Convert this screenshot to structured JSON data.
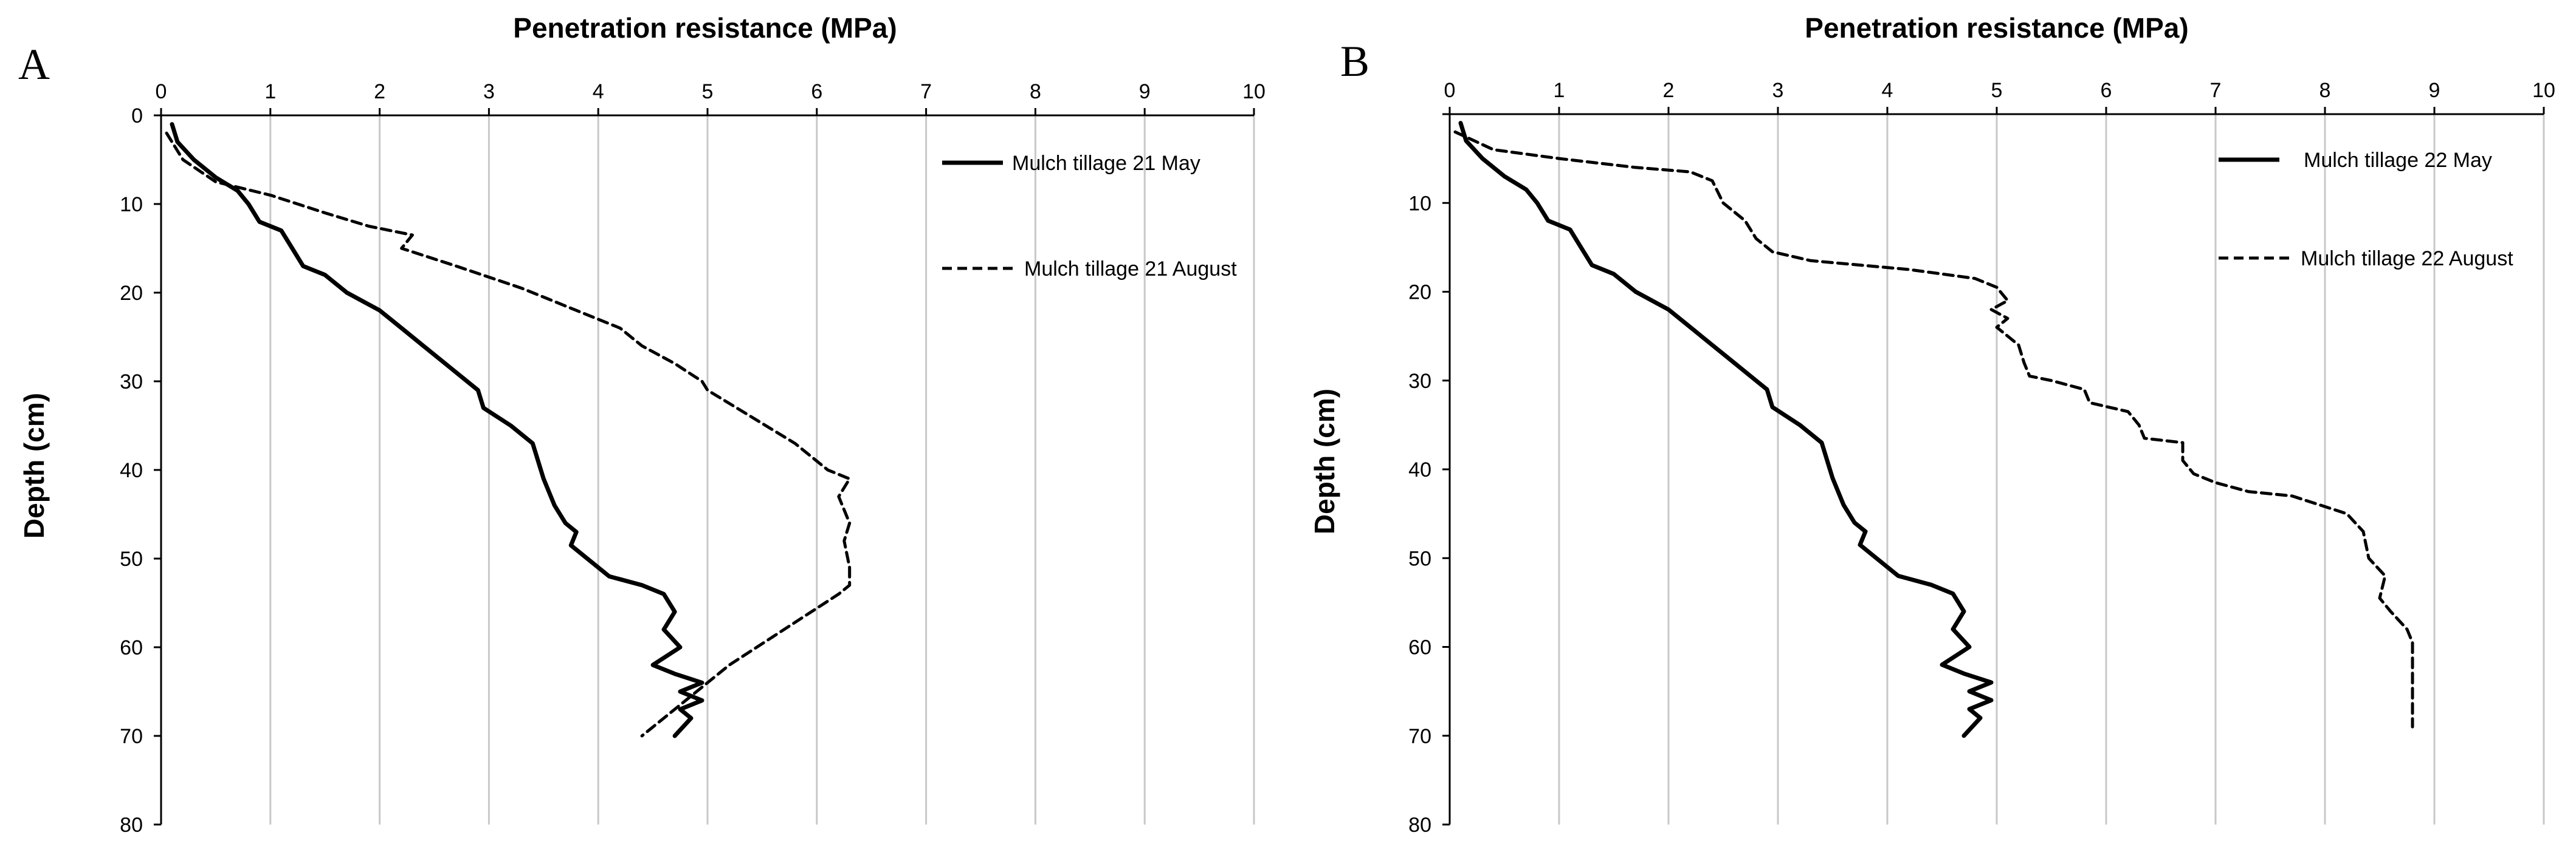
{
  "chart_data": [
    {
      "type": "line",
      "panel_label": "A",
      "title": "Penetration resistance (MPa)",
      "xlabel": "Penetration resistance (MPa)",
      "ylabel": "Depth (cm)",
      "xlim": [
        0,
        10
      ],
      "ylim": [
        0,
        80
      ],
      "x_ticks": [
        0,
        1,
        2,
        3,
        4,
        5,
        6,
        7,
        8,
        9,
        10
      ],
      "y_ticks": [
        0,
        10,
        20,
        30,
        40,
        50,
        60,
        70,
        80
      ],
      "y_inverted": true,
      "x_axis_position": "top",
      "grid": "vertical",
      "legend_position": "top-right",
      "series": [
        {
          "name": "Mulch tillage 21 May",
          "style": "solid",
          "points": [
            [
              0.1,
              1
            ],
            [
              0.15,
              3
            ],
            [
              0.3,
              5
            ],
            [
              0.5,
              7
            ],
            [
              0.7,
              8.5
            ],
            [
              0.8,
              10
            ],
            [
              0.9,
              12
            ],
            [
              1.1,
              13
            ],
            [
              1.2,
              15
            ],
            [
              1.3,
              17
            ],
            [
              1.5,
              18
            ],
            [
              1.7,
              20
            ],
            [
              2.0,
              22
            ],
            [
              2.2,
              24
            ],
            [
              2.4,
              26
            ],
            [
              2.6,
              28
            ],
            [
              2.8,
              30
            ],
            [
              2.9,
              31
            ],
            [
              2.95,
              33
            ],
            [
              3.2,
              35
            ],
            [
              3.4,
              37
            ],
            [
              3.45,
              39
            ],
            [
              3.5,
              41
            ],
            [
              3.6,
              44
            ],
            [
              3.7,
              46
            ],
            [
              3.8,
              47
            ],
            [
              3.75,
              48.5
            ],
            [
              3.9,
              50
            ],
            [
              4.1,
              52
            ],
            [
              4.4,
              53
            ],
            [
              4.6,
              54
            ],
            [
              4.7,
              56
            ],
            [
              4.6,
              58
            ],
            [
              4.75,
              60
            ],
            [
              4.5,
              62
            ],
            [
              4.7,
              63
            ],
            [
              4.95,
              64
            ],
            [
              4.75,
              65
            ],
            [
              4.95,
              66
            ],
            [
              4.75,
              67
            ],
            [
              4.85,
              68
            ],
            [
              4.7,
              70
            ]
          ]
        },
        {
          "name": "Mulch tillage 21 August",
          "style": "dashed",
          "points": [
            [
              0.05,
              2
            ],
            [
              0.2,
              5
            ],
            [
              0.5,
              7.5
            ],
            [
              1.0,
              9
            ],
            [
              1.5,
              11
            ],
            [
              1.9,
              12.5
            ],
            [
              2.3,
              13.5
            ],
            [
              2.2,
              15
            ],
            [
              2.7,
              17
            ],
            [
              3.3,
              19.5
            ],
            [
              3.8,
              22
            ],
            [
              4.2,
              24
            ],
            [
              4.4,
              26
            ],
            [
              4.7,
              28
            ],
            [
              4.95,
              30
            ],
            [
              5.0,
              31
            ],
            [
              5.4,
              34
            ],
            [
              5.8,
              37
            ],
            [
              6.1,
              40
            ],
            [
              6.3,
              41
            ],
            [
              6.2,
              43
            ],
            [
              6.3,
              46
            ],
            [
              6.25,
              48
            ],
            [
              6.3,
              51
            ],
            [
              6.3,
              53
            ],
            [
              6.2,
              54
            ],
            [
              5.2,
              62
            ],
            [
              4.4,
              70
            ]
          ]
        }
      ]
    },
    {
      "type": "line",
      "panel_label": "B",
      "title": "Penetration resistance (MPa)",
      "xlabel": "Penetration resistance (MPa)",
      "ylabel": "Depth (cm)",
      "xlim": [
        0,
        10
      ],
      "ylim": [
        0,
        80
      ],
      "x_ticks": [
        0,
        1,
        2,
        3,
        4,
        5,
        6,
        7,
        8,
        9,
        10
      ],
      "y_ticks": [
        0,
        10,
        20,
        30,
        40,
        50,
        60,
        70,
        80
      ],
      "y_tick_labels": [
        "",
        "10",
        "20",
        "30",
        "40",
        "50",
        "60",
        "70",
        "80"
      ],
      "y_inverted": true,
      "x_axis_position": "top",
      "grid": "vertical",
      "legend_position": "top-right",
      "series": [
        {
          "name": "Mulch tillage 22 May",
          "style": "solid",
          "points": [
            [
              0.1,
              1
            ],
            [
              0.15,
              3
            ],
            [
              0.3,
              5
            ],
            [
              0.5,
              7
            ],
            [
              0.7,
              8.5
            ],
            [
              0.8,
              10
            ],
            [
              0.9,
              12
            ],
            [
              1.1,
              13
            ],
            [
              1.2,
              15
            ],
            [
              1.3,
              17
            ],
            [
              1.5,
              18
            ],
            [
              1.7,
              20
            ],
            [
              2.0,
              22
            ],
            [
              2.2,
              24
            ],
            [
              2.4,
              26
            ],
            [
              2.6,
              28
            ],
            [
              2.8,
              30
            ],
            [
              2.9,
              31
            ],
            [
              2.95,
              33
            ],
            [
              3.2,
              35
            ],
            [
              3.4,
              37
            ],
            [
              3.45,
              39
            ],
            [
              3.5,
              41
            ],
            [
              3.6,
              44
            ],
            [
              3.7,
              46
            ],
            [
              3.8,
              47
            ],
            [
              3.75,
              48.5
            ],
            [
              3.9,
              50
            ],
            [
              4.1,
              52
            ],
            [
              4.4,
              53
            ],
            [
              4.6,
              54
            ],
            [
              4.7,
              56
            ],
            [
              4.6,
              58
            ],
            [
              4.75,
              60
            ],
            [
              4.5,
              62
            ],
            [
              4.7,
              63
            ],
            [
              4.95,
              64
            ],
            [
              4.75,
              65
            ],
            [
              4.95,
              66
            ],
            [
              4.75,
              67
            ],
            [
              4.85,
              68
            ],
            [
              4.7,
              70
            ]
          ]
        },
        {
          "name": "Mulch tillage 22 August",
          "style": "dashed",
          "points": [
            [
              0.05,
              2
            ],
            [
              0.4,
              4
            ],
            [
              1.0,
              5
            ],
            [
              1.7,
              6
            ],
            [
              2.2,
              6.5
            ],
            [
              2.4,
              7.5
            ],
            [
              2.5,
              10
            ],
            [
              2.7,
              12
            ],
            [
              2.8,
              14
            ],
            [
              2.95,
              15.5
            ],
            [
              3.3,
              16.5
            ],
            [
              4.2,
              17.5
            ],
            [
              4.8,
              18.5
            ],
            [
              5.0,
              19.5
            ],
            [
              5.1,
              21
            ],
            [
              4.95,
              22
            ],
            [
              5.1,
              23
            ],
            [
              5.0,
              24
            ],
            [
              5.2,
              26
            ],
            [
              5.25,
              28
            ],
            [
              5.3,
              29.5
            ],
            [
              5.5,
              30
            ],
            [
              5.8,
              31
            ],
            [
              5.85,
              32.5
            ],
            [
              6.2,
              33.5
            ],
            [
              6.3,
              35
            ],
            [
              6.35,
              36.5
            ],
            [
              6.7,
              37
            ],
            [
              6.7,
              39
            ],
            [
              6.8,
              40.5
            ],
            [
              7.0,
              41.5
            ],
            [
              7.3,
              42.5
            ],
            [
              7.7,
              43
            ],
            [
              8.2,
              45
            ],
            [
              8.35,
              47
            ],
            [
              8.4,
              50
            ],
            [
              8.55,
              52
            ],
            [
              8.5,
              54.5
            ],
            [
              8.6,
              56
            ],
            [
              8.75,
              58
            ],
            [
              8.8,
              59.5
            ],
            [
              8.8,
              63
            ],
            [
              8.8,
              69
            ]
          ]
        }
      ]
    }
  ]
}
